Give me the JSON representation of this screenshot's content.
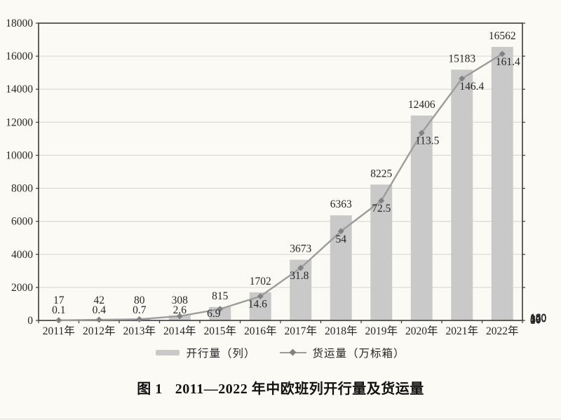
{
  "page": {
    "background": "#fcfaf5",
    "bottom_rule_color": "#dedbd4"
  },
  "chart_data": {
    "type": "bar+line",
    "categories": [
      "2011年",
      "2012年",
      "2013年",
      "2014年",
      "2015年",
      "2016年",
      "2017年",
      "2018年",
      "2019年",
      "2020年",
      "2021年",
      "2022年"
    ],
    "series": [
      {
        "name": "开行量（列）",
        "type": "bar",
        "axis": "left",
        "color": "#c9c9c9",
        "values": [
          17,
          42,
          80,
          308,
          815,
          1702,
          3673,
          6363,
          8225,
          12406,
          15183,
          16562
        ]
      },
      {
        "name": "货运量（万标箱）",
        "type": "line",
        "axis": "right",
        "color": "#9c9c9c",
        "marker": "diamond",
        "marker_color": "#828282",
        "values": [
          0.1,
          0.4,
          0.7,
          2.6,
          6.9,
          14.6,
          31.8,
          54,
          72.5,
          113.5,
          146.4,
          161.4
        ]
      }
    ],
    "left_axis": {
      "min": 0,
      "max": 18000,
      "step": 2000,
      "tick_labels": [
        "0",
        "2000",
        "4000",
        "6000",
        "8000",
        "10000",
        "12000",
        "14000",
        "16000",
        "18000"
      ]
    },
    "right_axis": {
      "min": 0,
      "max": 180,
      "step": 20,
      "tick_labels": [
        "0",
        "20",
        "40",
        "60",
        "80",
        "100",
        "120",
        "140",
        "160",
        "180"
      ]
    },
    "grid": true,
    "legend_position": "bottom",
    "colors": {
      "grid": "#dfdcd6",
      "axis": "#3a3a3a",
      "text": "#262626"
    }
  },
  "caption": {
    "figure_label": "图 1",
    "title": "2011—2022 年中欧班列开行量及货运量"
  }
}
